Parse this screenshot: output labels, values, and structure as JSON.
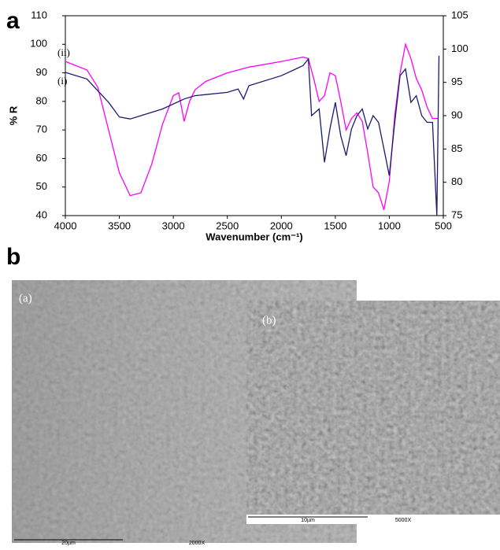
{
  "chart_data": {
    "type": "line",
    "panel_label": "a",
    "xlabel": "Wavenumber (cm⁻¹)",
    "ylabel": "% R",
    "xlim": [
      4000,
      500
    ],
    "xticks": [
      4000,
      3500,
      3000,
      2500,
      2000,
      1500,
      1000,
      500
    ],
    "ylim": [
      40,
      110
    ],
    "yticks": [
      40,
      50,
      60,
      70,
      80,
      90,
      100,
      110
    ],
    "y2lim": [
      75,
      105
    ],
    "y2ticks": [
      75,
      80,
      85,
      90,
      95,
      100,
      105
    ],
    "series": [
      {
        "name": "(ii)",
        "color": "#ff00ff",
        "axis": "y",
        "x": [
          4000,
          3800,
          3700,
          3600,
          3500,
          3400,
          3300,
          3200,
          3100,
          3000,
          2950,
          2900,
          2850,
          2800,
          2700,
          2500,
          2300,
          2000,
          1800,
          1750,
          1700,
          1650,
          1600,
          1550,
          1500,
          1450,
          1400,
          1350,
          1300,
          1250,
          1200,
          1150,
          1100,
          1050,
          1000,
          950,
          900,
          850,
          800,
          750,
          700,
          650,
          600,
          550
        ],
        "values": [
          94,
          91,
          85,
          70,
          55,
          47,
          48,
          58,
          72,
          82,
          83,
          73,
          80,
          84,
          87,
          90,
          92,
          94,
          95.5,
          95,
          88,
          80,
          82,
          90,
          89,
          80,
          70,
          74,
          76,
          73,
          62,
          50,
          48,
          42,
          52,
          75,
          90,
          100,
          95,
          88,
          84,
          78,
          74,
          74
        ]
      },
      {
        "name": "(i)",
        "color": "#1a1a6e",
        "axis": "y2",
        "x": [
          4000,
          3800,
          3600,
          3500,
          3400,
          3300,
          3100,
          2900,
          2800,
          2500,
          2400,
          2350,
          2300,
          2000,
          1800,
          1750,
          1720,
          1650,
          1600,
          1550,
          1500,
          1450,
          1400,
          1350,
          1300,
          1250,
          1200,
          1150,
          1100,
          1050,
          1000,
          950,
          900,
          850,
          800,
          750,
          700,
          650,
          600,
          560,
          540
        ],
        "values": [
          96.5,
          95.5,
          92,
          89.8,
          89.5,
          90,
          91,
          92.5,
          93,
          93.5,
          94,
          92.5,
          94.5,
          96,
          97.5,
          98.5,
          90,
          91,
          83,
          88,
          92,
          87,
          84,
          88,
          90,
          91,
          88,
          90,
          89,
          85,
          81,
          89,
          96,
          97,
          92,
          93,
          90,
          89,
          89,
          75,
          99
        ]
      }
    ]
  },
  "figure": {
    "panel_label": "b",
    "images": [
      {
        "label": "(a)",
        "scale": "20µm",
        "magnification": "2000X"
      },
      {
        "label": "(b)",
        "scale": "10µm",
        "magnification": "5000X"
      }
    ]
  }
}
